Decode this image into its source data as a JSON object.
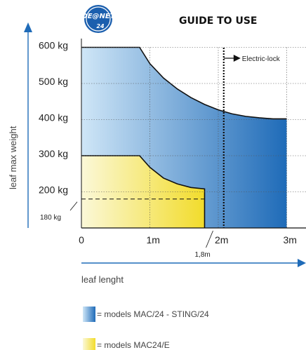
{
  "chart_data": {
    "type": "area",
    "title": "GUIDE TO USE",
    "xlabel": "leaf lenght",
    "ylabel": "leaf max weight",
    "xlim": [
      0,
      3
    ],
    "ylim": [
      100,
      600
    ],
    "x_ticks": [
      "0",
      "1m",
      "2m",
      "3m"
    ],
    "y_ticks": [
      "200 kg",
      "300 kg",
      "400 kg",
      "500 kg",
      "600 kg"
    ],
    "grid": true,
    "series": [
      {
        "legend_label": "= models MAC/24 - STING/24",
        "color_start": "#cfe6f7",
        "color_end": "#1f6bb8",
        "x": [
          0,
          0.85,
          1.0,
          1.2,
          1.4,
          1.6,
          1.8,
          2.0,
          2.2,
          2.4,
          2.6,
          2.8,
          3.0
        ],
        "y": [
          600,
          600,
          555,
          515,
          485,
          461,
          442,
          427,
          416,
          409,
          405,
          402,
          402
        ]
      },
      {
        "legend_label": "= models MAC24/E",
        "color_start": "#fbf8d8",
        "color_end": "#f2dc2b",
        "x": [
          0,
          0.85,
          1.0,
          1.2,
          1.4,
          1.6,
          1.8
        ],
        "y": [
          300,
          300,
          268,
          238,
          222,
          212,
          208
        ]
      }
    ],
    "annotations": {
      "electric_lock": {
        "label": "Electric-lock",
        "x": 2.08
      },
      "limit_weight": {
        "label": "180 kg",
        "value": 180
      },
      "limit_length": {
        "label": "1,8m",
        "value": 1.8
      }
    }
  },
  "logo": {
    "text": "DE@NET",
    "sub": "24"
  }
}
